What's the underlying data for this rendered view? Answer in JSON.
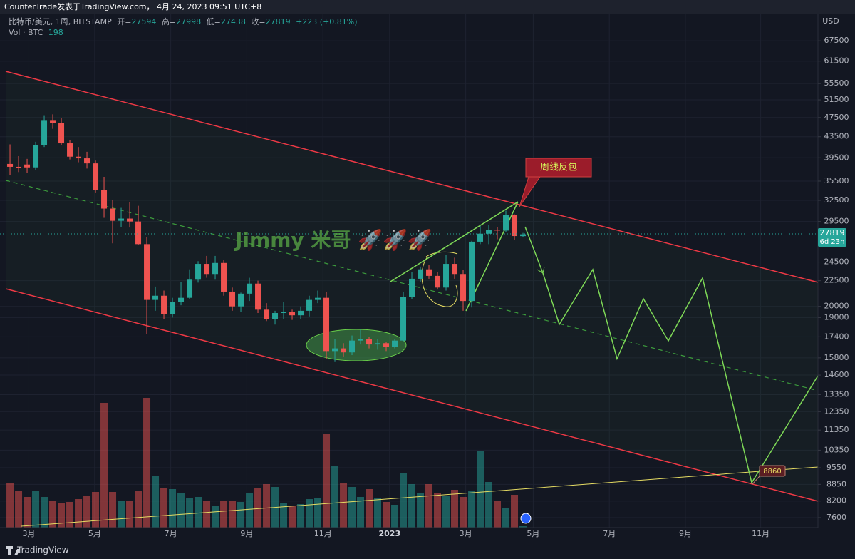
{
  "header": "CounterTrade发表于TradingView.com， 4月 24, 2023 09:51 UTC+8",
  "footer_brand": "TradingView",
  "chart_data": {
    "type": "candlestick",
    "title": "比特币/美元, 1周, BITSTAMP",
    "ohlc_labels": [
      "开=",
      "高=",
      "低=",
      "收="
    ],
    "change": "+223 (+0.81%)",
    "volume_label": "Vol · BTC",
    "currency": "USD",
    "countdown": "6d 23h",
    "log_scale": true,
    "grid": true,
    "up_color": "#26a69a",
    "down_color": "#ef5350",
    "volume_up_color": "rgba(38,166,154,0.5)",
    "volume_down_color": "rgba(239,83,80,0.5)",
    "open": [
      38400,
      37900,
      38300,
      37800,
      41800,
      46800,
      46300,
      42200,
      39700,
      39400,
      38500,
      34100,
      31300,
      29600,
      29900,
      29500,
      26600,
      20600,
      21000,
      19300,
      20400,
      20800,
      22600,
      24300,
      23200,
      24400,
      21400,
      20000,
      21200,
      22200,
      19700,
      18900,
      19400,
      19500,
      19200,
      19600,
      20600,
      20800,
      16300,
      16500,
      16200,
      17100,
      17200,
      16800,
      16900,
      16600,
      17100,
      20900,
      22700,
      23700,
      23000,
      21800,
      24300,
      23200,
      20500,
      26900,
      27900,
      28400,
      28300,
      30400,
      27594
    ],
    "high": [
      42000,
      39800,
      39300,
      42500,
      48000,
      48200,
      47400,
      42900,
      41500,
      40600,
      39000,
      36200,
      32600,
      31400,
      32200,
      31700,
      27500,
      21900,
      21500,
      20800,
      22400,
      23700,
      24600,
      25200,
      25200,
      24700,
      21800,
      21300,
      22800,
      22500,
      20300,
      19600,
      20400,
      19700,
      20000,
      21000,
      21500,
      21400,
      17200,
      16900,
      17500,
      18000,
      17400,
      17200,
      17000,
      17200,
      21400,
      23400,
      24000,
      24200,
      23400,
      25300,
      25000,
      23600,
      27000,
      28900,
      29000,
      28800,
      31000,
      30500,
      27998
    ],
    "low": [
      36500,
      37000,
      36800,
      37400,
      41500,
      45100,
      41800,
      39200,
      38700,
      37600,
      33700,
      30000,
      26700,
      28800,
      28700,
      26500,
      17600,
      19600,
      18900,
      19000,
      20100,
      20700,
      22300,
      22800,
      22600,
      21000,
      19600,
      19500,
      20500,
      19400,
      18700,
      18400,
      18900,
      18800,
      18900,
      19100,
      20300,
      15700,
      15500,
      15900,
      16000,
      16800,
      16500,
      16400,
      16300,
      16500,
      17000,
      20700,
      22400,
      22700,
      21600,
      21500,
      22700,
      19600,
      19900,
      26600,
      26600,
      27200,
      28100,
      27100,
      27438
    ],
    "close": [
      37900,
      37700,
      37800,
      41800,
      46800,
      46300,
      42200,
      39700,
      39400,
      38500,
      34100,
      31300,
      29600,
      29900,
      29500,
      26600,
      20600,
      21000,
      19300,
      20400,
      20800,
      22600,
      24300,
      23200,
      24400,
      21400,
      20000,
      21200,
      22200,
      19700,
      18900,
      19400,
      19500,
      19200,
      19600,
      20600,
      20800,
      16300,
      16500,
      16200,
      17100,
      17200,
      16800,
      16900,
      16600,
      17100,
      20900,
      22700,
      23700,
      23000,
      21800,
      24300,
      23200,
      20500,
      26900,
      27900,
      28400,
      28300,
      30400,
      27600,
      27819
    ],
    "volume": [
      6300,
      5200,
      4300,
      5200,
      4300,
      3800,
      3400,
      3600,
      4000,
      4400,
      5000,
      17500,
      5000,
      3700,
      3700,
      5200,
      18200,
      7200,
      5600,
      5400,
      4900,
      4200,
      4300,
      3700,
      3100,
      3800,
      3800,
      3600,
      4900,
      5500,
      6100,
      5700,
      3400,
      3000,
      3300,
      4000,
      4200,
      13200,
      8700,
      6300,
      5700,
      4300,
      5400,
      4100,
      3600,
      3200,
      7600,
      6100,
      4800,
      6100,
      4800,
      4400,
      5300,
      4300,
      5200,
      10700,
      6400,
      3800,
      2800,
      4600,
      198
    ],
    "vlim": [
      0,
      19000
    ],
    "xlim": [
      -1.17,
      94.5
    ],
    "xticks": [
      {
        "value": 2.2,
        "label": "3月"
      },
      {
        "value": 9.9,
        "label": "5月"
      },
      {
        "value": 18.8,
        "label": "7月"
      },
      {
        "value": 27.7,
        "label": "9月"
      },
      {
        "value": 36.6,
        "label": "11月"
      },
      {
        "value": 44.4,
        "label": "2023"
      },
      {
        "value": 53.3,
        "label": "3月"
      },
      {
        "value": 61.2,
        "label": "5月"
      },
      {
        "value": 70.1,
        "label": "7月"
      },
      {
        "value": 79,
        "label": "9月"
      },
      {
        "value": 87.8,
        "label": "11月"
      }
    ],
    "ylim": [
      7260,
      71400
    ],
    "yticks": [
      67500,
      61500,
      55500,
      51500,
      47500,
      43500,
      39500,
      35500,
      32500,
      29500,
      24500,
      22500,
      20000,
      19000,
      17400,
      15800,
      14600,
      13350,
      12350,
      11350,
      10350,
      9550,
      8850,
      8200,
      7600
    ],
    "annotations": {
      "callout": "周线反包",
      "watermark": "Jimmy 米哥 🚀🚀🚀",
      "price_tag": 8860
    }
  }
}
